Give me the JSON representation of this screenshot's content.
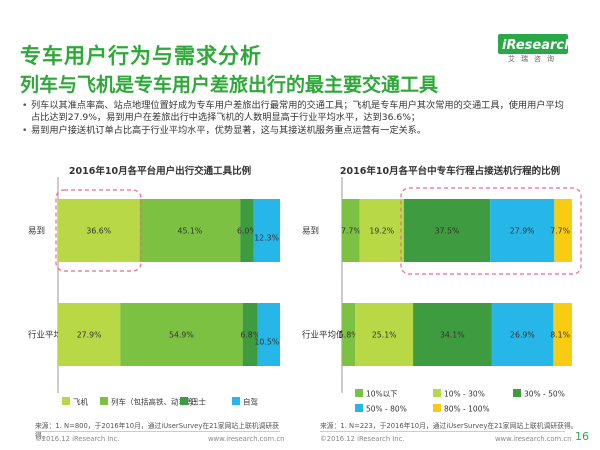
{
  "header": {
    "title": "专车用户行为与需求分析",
    "subtitle": "列车与飞机是专车用户差旅出行的最主要交通工具",
    "logo_text": "iResearch",
    "logo_sub": "艾瑞咨询"
  },
  "bullets": [
    "列车以其准点率高、站点地理位置好成为专车用户差旅出行最常用的交通工具；飞机是专车用户其次常用的交通工具，使用用户平均占比达到27.9%，易到用户在差旅出行中选择飞机的人数明显高于行业平均水平，达到36.6%；",
    "易到用户接送机订单占比高于行业平均水平，优势显著，这与其接送机服务重点运营有一定关系。"
  ],
  "colors": {
    "c1": "#b8d945",
    "c2": "#7cc142",
    "c3": "#3f9b3f",
    "c4": "#27b6e8",
    "c5": "#f7cc12",
    "highlight": "#e66b8e"
  },
  "chart_data": [
    {
      "type": "bar",
      "orientation": "horizontal-stacked",
      "title": "2016年10月各平台用户出行交通工具比例",
      "categories": [
        "易到",
        "行业平均值"
      ],
      "series": [
        {
          "name": "飞机",
          "values": [
            36.6,
            27.9
          ],
          "labels": [
            "36.6%",
            "27.9%"
          ]
        },
        {
          "name": "列车（包括高铁、动车等）",
          "values": [
            45.1,
            54.9
          ],
          "labels": [
            "45.1%",
            "54.9%"
          ]
        },
        {
          "name": "巴士",
          "values": [
            6.0,
            6.8
          ],
          "labels": [
            "6.0%",
            "6.8%"
          ]
        },
        {
          "name": "自驾",
          "values": [
            12.3,
            10.5
          ],
          "labels": [
            "12.3%",
            "10.5%"
          ]
        }
      ],
      "highlight": {
        "category": "易到",
        "series": "飞机"
      },
      "source": "来源：1. N=800，于2016年10月，通过iUserSurvey在21家网站上联机调研获得。",
      "footer_left": "©2016.12 iResearch Inc.",
      "footer_right": "www.iresearch.com.cn"
    },
    {
      "type": "bar",
      "orientation": "horizontal-stacked",
      "title": "2016年10月各平台中专车行程占接送机行程的比例",
      "categories": [
        "易到",
        "行业平均值"
      ],
      "series": [
        {
          "name": "10%以下",
          "values": [
            7.7,
            5.8
          ],
          "labels": [
            "7.7%",
            "5.8%"
          ]
        },
        {
          "name": "10% - 30%",
          "values": [
            19.2,
            25.1
          ],
          "labels": [
            "19.2%",
            "25.1%"
          ]
        },
        {
          "name": "30% - 50%",
          "values": [
            37.5,
            34.1
          ],
          "labels": [
            "37.5%",
            "34.1%"
          ]
        },
        {
          "name": "50% - 80%",
          "values": [
            27.9,
            26.9
          ],
          "labels": [
            "27.9%",
            "26.9%"
          ]
        },
        {
          "name": "80% - 100%",
          "values": [
            7.7,
            8.1
          ],
          "labels": [
            "7.7%",
            "8.1%"
          ]
        }
      ],
      "highlight": {
        "category": "易到",
        "series_range": [
          "30% - 50%",
          "80% - 100%"
        ]
      },
      "source": "来源：1. N=223，于2016年10月，通过iUserSurvey在21家网站上联机调研获得。",
      "footer_left": "©2016.12 iResearch Inc.",
      "footer_right": "www.iresearch.com.cn"
    }
  ],
  "page_number": "16"
}
